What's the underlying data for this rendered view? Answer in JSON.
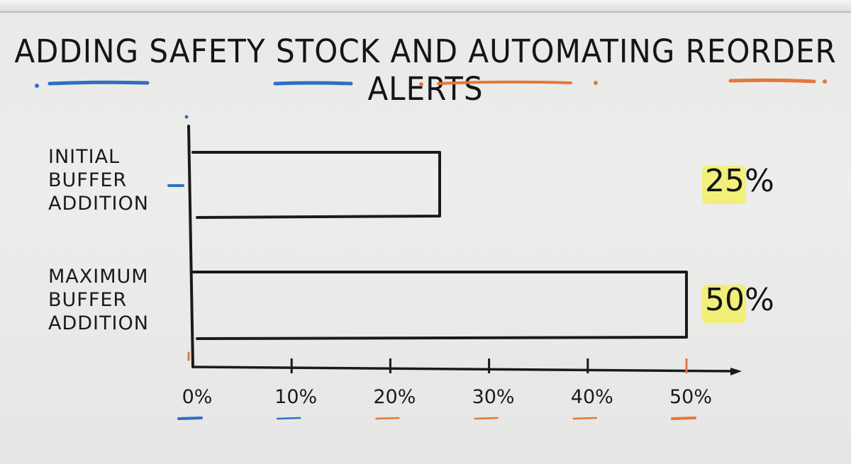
{
  "chart_data": {
    "type": "bar",
    "orientation": "horizontal",
    "title": "Adding Safety Stock and Automating Reorder Alerts",
    "categories": [
      "Initial\nBuffer\nAddition",
      "Maximum\nBuffer\nAddition"
    ],
    "values": [
      25,
      50
    ],
    "value_labels": [
      "25%",
      "50%"
    ],
    "x_ticks": [
      "0%",
      "10%",
      "20%",
      "30%",
      "40%",
      "50%"
    ],
    "xlim": [
      0,
      50
    ],
    "grid": false,
    "legend": "none"
  },
  "colors": {
    "ink": "#1a1a1a",
    "highlight": "#f2ee66",
    "accent_blue": "#2f6fc4",
    "accent_orange": "#e5773c"
  }
}
